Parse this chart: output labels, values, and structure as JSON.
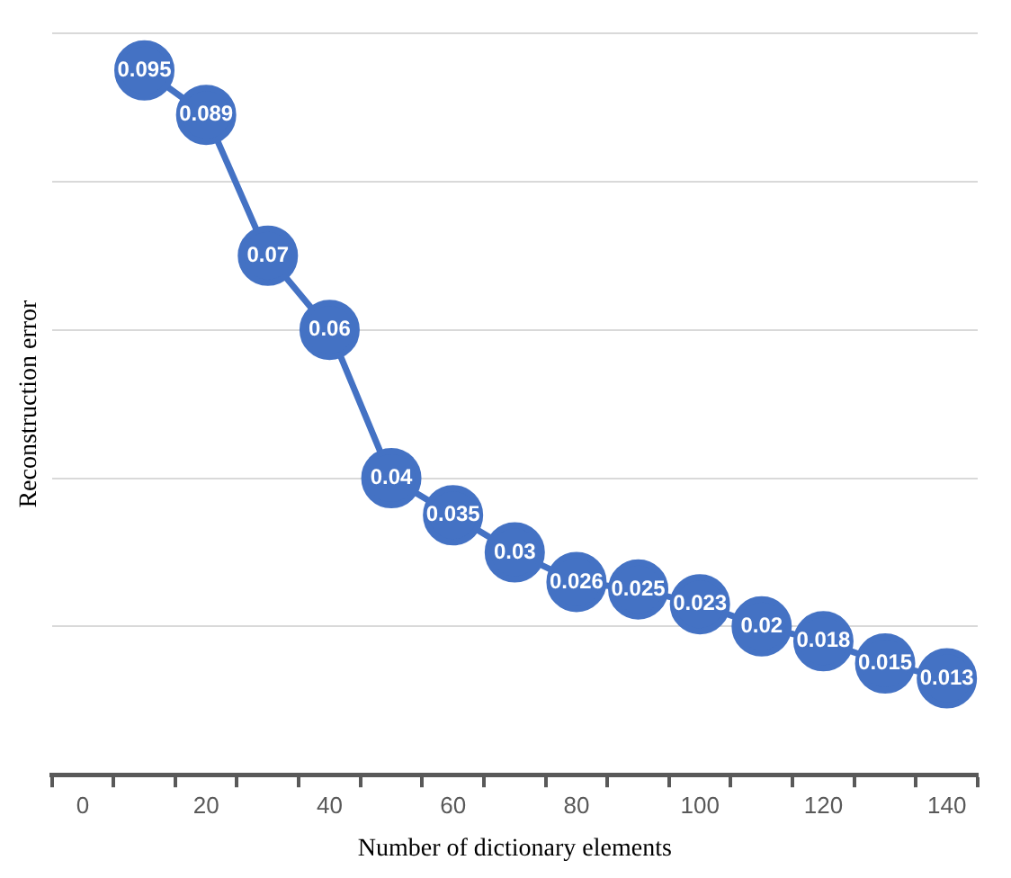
{
  "chart_data": {
    "type": "line",
    "xlabel": "Number of dictionary elements",
    "ylabel": "Reconstruction error",
    "x": [
      10,
      20,
      30,
      40,
      50,
      60,
      70,
      80,
      90,
      100,
      110,
      120,
      130,
      140
    ],
    "series": [
      {
        "color": "#4472c4",
        "values": [
          0.095,
          0.089,
          0.07,
          0.06,
          0.04,
          0.035,
          0.03,
          0.026,
          0.025,
          0.023,
          0.02,
          0.018,
          0.015,
          0.013
        ]
      }
    ],
    "xlim": [
      -5,
      145
    ],
    "xticks": [
      {
        "value": -5,
        "label": null
      },
      0,
      {
        "value": 5,
        "label": null
      },
      {
        "value": 15,
        "label": null
      },
      20,
      {
        "value": 25,
        "label": null
      },
      {
        "value": 35,
        "label": null
      },
      40,
      {
        "value": 45,
        "label": null
      },
      {
        "value": 55,
        "label": null
      },
      60,
      {
        "value": 65,
        "label": null
      },
      {
        "value": 75,
        "label": null
      },
      80,
      {
        "value": 85,
        "label": null
      },
      {
        "value": 95,
        "label": null
      },
      100,
      {
        "value": 105,
        "label": null
      },
      {
        "value": 115,
        "label": null
      },
      120,
      {
        "value": 125,
        "label": null
      },
      {
        "value": 135,
        "label": null
      },
      140,
      {
        "value": 145,
        "label": null
      }
    ],
    "ylim": [
      0,
      0.1
    ],
    "yticks": [
      0,
      0.02,
      0.04,
      0.06,
      0.08,
      0.1
    ],
    "tick_labels": "x",
    "grid": "y",
    "legend": false,
    "marker": "circle",
    "line_style": "solid",
    "data_labels": true
  }
}
